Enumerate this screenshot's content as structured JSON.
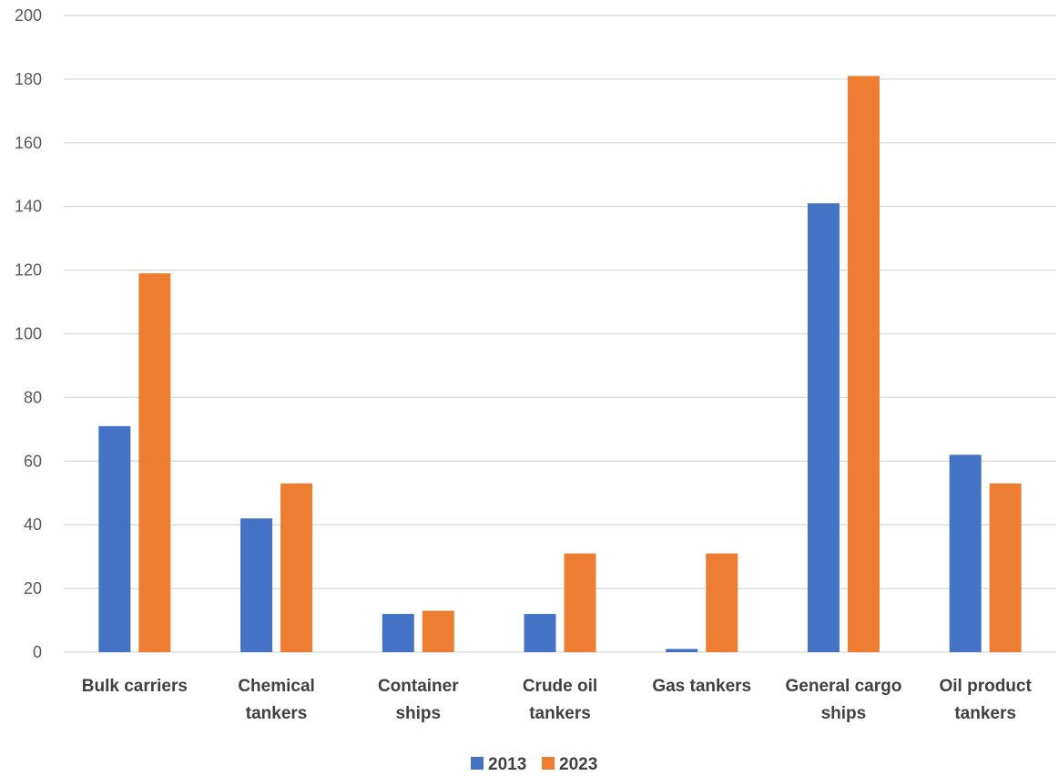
{
  "chart_data": {
    "type": "bar",
    "title": "",
    "xlabel": "",
    "ylabel": "",
    "ylim": [
      0,
      200
    ],
    "yticks": [
      0,
      20,
      40,
      60,
      80,
      100,
      120,
      140,
      160,
      180,
      200
    ],
    "grid": true,
    "legend_position": "bottom",
    "categories": [
      [
        "Bulk carriers"
      ],
      [
        "Chemical",
        "tankers"
      ],
      [
        "Container",
        "ships"
      ],
      [
        "Crude oil",
        "tankers"
      ],
      [
        "Gas tankers"
      ],
      [
        "General cargo",
        "ships"
      ],
      [
        "Oil product",
        "tankers"
      ]
    ],
    "series": [
      {
        "name": "2013",
        "color": "#4472c4",
        "values": [
          71,
          42,
          12,
          12,
          1,
          141,
          62
        ]
      },
      {
        "name": "2023",
        "color": "#ed7d31",
        "values": [
          119,
          53,
          13,
          31,
          31,
          181,
          53
        ]
      }
    ]
  }
}
